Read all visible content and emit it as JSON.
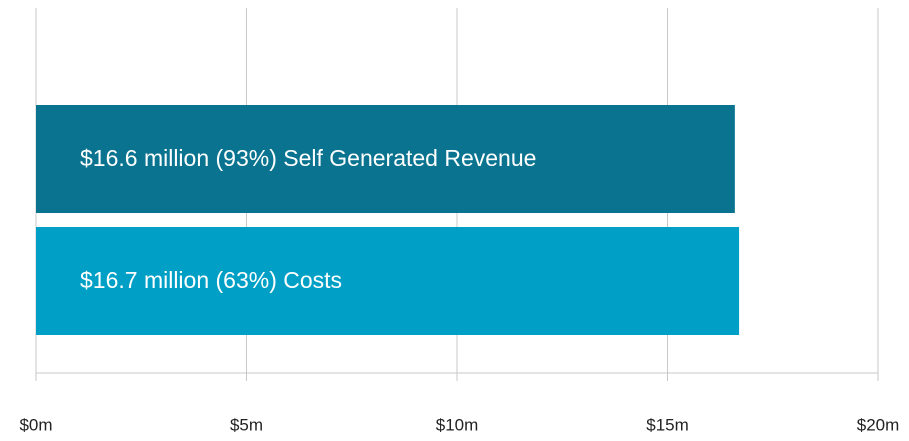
{
  "chart_data": {
    "type": "barh",
    "categories": [
      "Self Generated Revenue",
      "Costs"
    ],
    "values": [
      16.6,
      16.7
    ],
    "value_labels": [
      "$16.6 million (93%)",
      "$16.7 million (63%)"
    ],
    "colors": [
      "#0a7490",
      "#00a0c6"
    ],
    "xlim": [
      0,
      20
    ],
    "xticks": [
      {
        "value": 0,
        "label": "$0m"
      },
      {
        "value": 5,
        "label": "$5m"
      },
      {
        "value": 10,
        "label": "$10m"
      },
      {
        "value": 15,
        "label": "$15m"
      },
      {
        "value": 20,
        "label": "$20m"
      }
    ],
    "grid": true
  }
}
